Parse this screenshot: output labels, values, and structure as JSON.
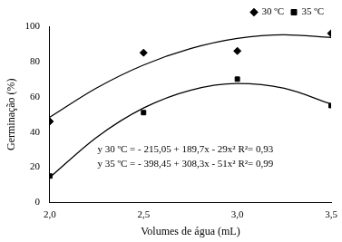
{
  "chart_data": {
    "type": "scatter",
    "x_label": "Volumes de água (mL)",
    "y_label": "Germinação (%)",
    "xlim": [
      2,
      3.5
    ],
    "xticks": [
      {
        "value": 2,
        "label": "2,0"
      },
      {
        "value": 2.5,
        "label": "2,5"
      },
      {
        "value": 3,
        "label": "3,0"
      },
      {
        "value": 3.5,
        "label": "3,5"
      }
    ],
    "ylim": [
      0,
      100
    ],
    "yticks": [
      0,
      20,
      40,
      60,
      80,
      100
    ],
    "grid": false,
    "legend": "top-right",
    "annotations": [
      "y 30 ºC = - 215,05 + 189,7x - 29x² R²= 0,93",
      "y 35 ºC = - 398,45 + 308,3x - 51x² R²= 0,99"
    ],
    "series": [
      {
        "name": "30 ºC",
        "color": "#000000",
        "marker": "diamond",
        "x": [
          2,
          2.5,
          3,
          3.5
        ],
        "values": [
          46,
          85,
          86,
          96
        ],
        "trend": {
          "line_style": "solid",
          "x": [
            2,
            2.25,
            2.5,
            2.75,
            3,
            3.25,
            3.5
          ],
          "values": [
            48.4,
            65.0,
            78.0,
            87.3,
            93.1,
            95.2,
            93.7
          ]
        }
      },
      {
        "name": "35 ºC",
        "color": "#000000",
        "marker": "square",
        "x": [
          2,
          2.5,
          3,
          3.5
        ],
        "values": [
          15,
          51,
          70,
          55
        ],
        "trend": {
          "line_style": "solid",
          "x": [
            2,
            2.25,
            2.5,
            2.75,
            3,
            3.25,
            3.5
          ],
          "values": [
            14.2,
            37.0,
            53.6,
            63.7,
            67.5,
            64.8,
            55.9
          ]
        }
      }
    ]
  }
}
